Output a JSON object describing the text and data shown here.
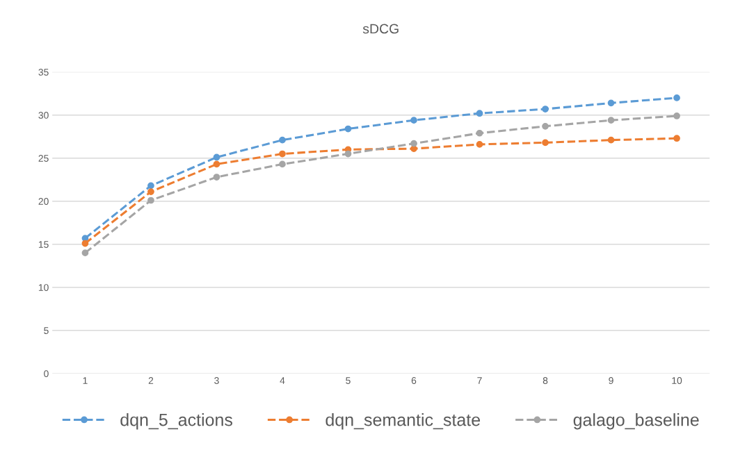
{
  "chart_data": {
    "type": "line",
    "title": "sDCG",
    "categories": [
      "1",
      "2",
      "3",
      "4",
      "5",
      "6",
      "7",
      "8",
      "9",
      "10"
    ],
    "series": [
      {
        "name": "dqn_5_actions",
        "color": "#5b9bd5",
        "values": [
          15.7,
          21.8,
          25.1,
          27.1,
          28.4,
          29.4,
          30.2,
          30.7,
          31.4,
          32.0
        ]
      },
      {
        "name": "dqn_semantic_state",
        "color": "#ed7d31",
        "values": [
          15.1,
          21.1,
          24.3,
          25.5,
          26.0,
          26.1,
          26.6,
          26.8,
          27.1,
          27.3
        ]
      },
      {
        "name": "galago_baseline",
        "color": "#a5a5a5",
        "values": [
          14.0,
          20.1,
          22.8,
          24.3,
          25.5,
          26.7,
          27.9,
          28.7,
          29.4,
          29.9
        ]
      }
    ],
    "ylim": [
      0,
      35
    ],
    "yticks": [
      0,
      5,
      10,
      15,
      20,
      25,
      30,
      35
    ],
    "grid": "y",
    "legend": "bottom",
    "marker": "circle",
    "line_style": "dashed"
  }
}
